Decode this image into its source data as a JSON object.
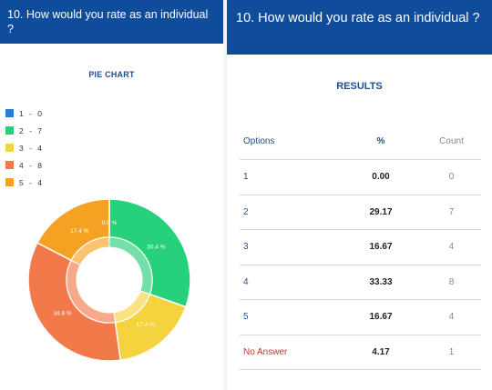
{
  "left_panel": {
    "question": "10. How would you rate as an individual ?",
    "chart_title": "PIE CHART",
    "legend": [
      {
        "label": "1 - 0",
        "color": "#2a7fd4"
      },
      {
        "label": "2 - 7",
        "color": "#27d07a"
      },
      {
        "label": "3 - 4",
        "color": "#f4d33f"
      },
      {
        "label": "4 - 8",
        "color": "#f27a4a"
      },
      {
        "label": "5 - 4",
        "color": "#f5a223"
      }
    ]
  },
  "chart_data": {
    "type": "pie",
    "categories": [
      "1",
      "2",
      "3",
      "4",
      "5"
    ],
    "values": [
      0.0,
      30.4,
      17.4,
      34.8,
      17.4
    ],
    "labels": [
      "0.0 %",
      "30.4 %",
      "17.4 %",
      "34.8 %",
      "17.4 %"
    ],
    "colors": [
      "#2a7fd4",
      "#27d07a",
      "#f4d33f",
      "#f27a4a",
      "#f5a223"
    ],
    "title": "PIE CHART"
  },
  "right_panel": {
    "question": "10. How would you rate as an individual ?",
    "results_title": "RESULTS",
    "columns": {
      "options": "Options",
      "percent": "%",
      "count": "Count"
    },
    "rows": [
      {
        "option": "1",
        "percent": "0.00",
        "count": "0"
      },
      {
        "option": "2",
        "percent": "29.17",
        "count": "7"
      },
      {
        "option": "3",
        "percent": "16.67",
        "count": "4"
      },
      {
        "option": "4",
        "percent": "33.33",
        "count": "8"
      },
      {
        "option": "5",
        "percent": "16.67",
        "count": "4"
      },
      {
        "option": "No Answer",
        "percent": "4.17",
        "count": "1"
      }
    ]
  }
}
